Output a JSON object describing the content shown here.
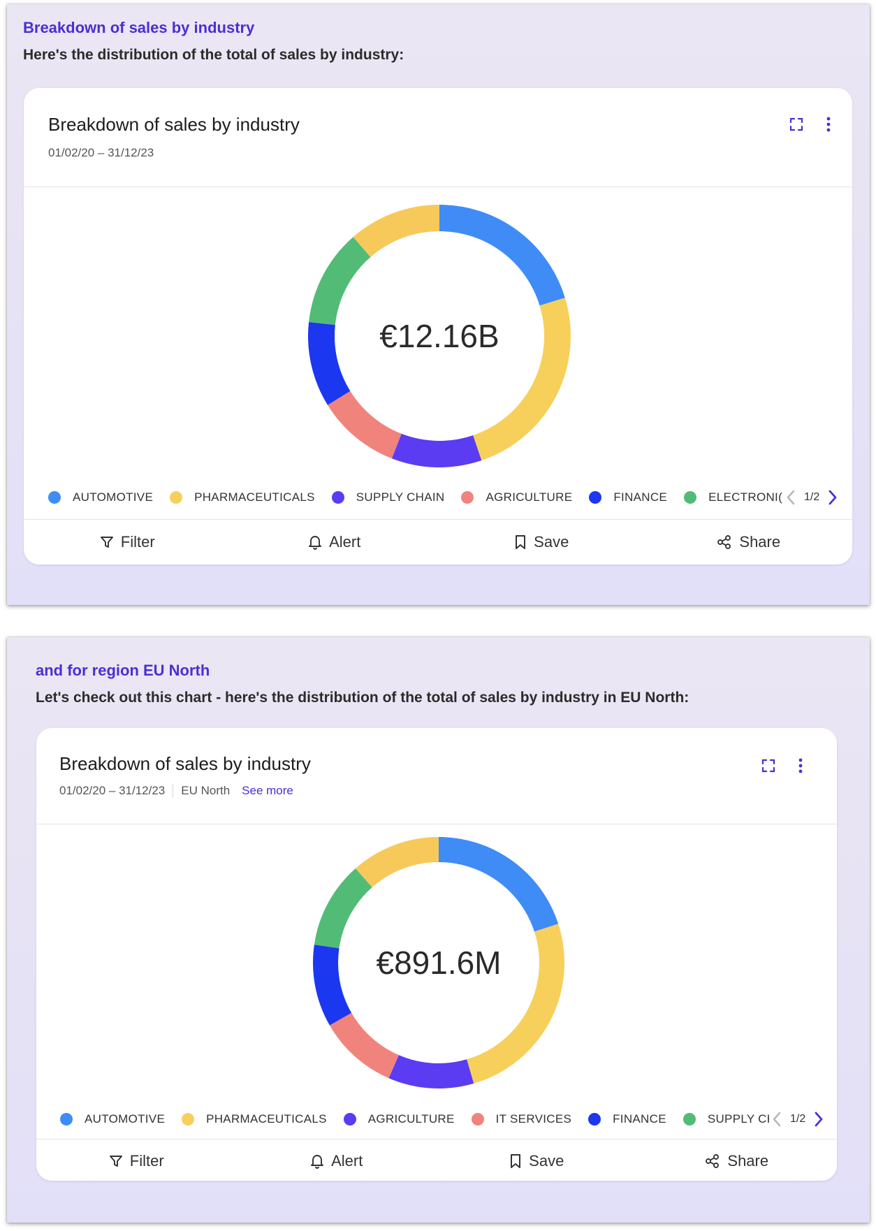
{
  "panels": [
    {
      "intro_title": "Breakdown of sales by industry",
      "intro_text": "Here's the distribution of the total of sales by industry:",
      "card": {
        "title": "Breakdown of sales by industry",
        "date_range": "01/02/20 – 31/12/23",
        "region": "",
        "see_more": "",
        "total": "€12.16B",
        "legend_page": "1/2",
        "actions": {
          "filter": "Filter",
          "alert": "Alert",
          "save": "Save",
          "share": "Share"
        }
      },
      "chart_data": {
        "type": "pie",
        "center_label": "€12.16B",
        "legend": [
          {
            "label": "AUTOMOTIVE",
            "color": "#3f8cf6"
          },
          {
            "label": "PHARMACEUTICALS",
            "color": "#f7d05c"
          },
          {
            "label": "SUPPLY CHAIN",
            "color": "#5b3cf2"
          },
          {
            "label": "AGRICULTURE",
            "color": "#f0847d"
          },
          {
            "label": "FINANCE",
            "color": "#1c37f0"
          },
          {
            "label": "ELECTRONI(",
            "color": "#52bc77"
          }
        ],
        "slices": [
          {
            "color": "#3f8cf6",
            "percent": 20.3
          },
          {
            "color": "#f7d05c",
            "percent": 24.5
          },
          {
            "color": "#5b3cf2",
            "percent": 11.1
          },
          {
            "color": "#f0847d",
            "percent": 10.3
          },
          {
            "color": "#1c37f0",
            "percent": 10.5
          },
          {
            "color": "#52bc77",
            "percent": 11.9
          },
          {
            "color": "#f7c95a",
            "percent": 11.4
          }
        ]
      }
    },
    {
      "intro_title": "and for region EU North",
      "intro_text": "Let's check out this chart - here's the distribution of the total of sales by industry in EU North:",
      "card": {
        "title": "Breakdown of sales by industry",
        "date_range": "01/02/20 – 31/12/23",
        "region": "EU North",
        "see_more": "See more",
        "total": "€891.6M",
        "legend_page": "1/2",
        "actions": {
          "filter": "Filter",
          "alert": "Alert",
          "save": "Save",
          "share": "Share"
        }
      },
      "chart_data": {
        "type": "pie",
        "center_label": "€891.6M",
        "legend": [
          {
            "label": "AUTOMOTIVE",
            "color": "#3f8cf6"
          },
          {
            "label": "PHARMACEUTICALS",
            "color": "#f7d05c"
          },
          {
            "label": "AGRICULTURE",
            "color": "#5b3cf2"
          },
          {
            "label": "IT SERVICES",
            "color": "#f0847d"
          },
          {
            "label": "FINANCE",
            "color": "#1c37f0"
          },
          {
            "label": "SUPPLY CHAIN",
            "color": "#52bc77"
          }
        ],
        "slices": [
          {
            "color": "#3f8cf6",
            "percent": 20.0
          },
          {
            "color": "#f7d05c",
            "percent": 25.5
          },
          {
            "color": "#5b3cf2",
            "percent": 11.0
          },
          {
            "color": "#f0847d",
            "percent": 10.2
          },
          {
            "color": "#1c37f0",
            "percent": 10.6
          },
          {
            "color": "#52bc77",
            "percent": 11.2
          },
          {
            "color": "#f7c95a",
            "percent": 11.5
          }
        ]
      }
    }
  ],
  "icons": {
    "expand": "expand-icon",
    "more": "more-vertical-icon",
    "filter": "filter-icon",
    "alert": "bell-icon",
    "save": "bookmark-icon",
    "share": "share-icon",
    "prev": "chevron-left-icon",
    "next": "chevron-right-icon"
  }
}
